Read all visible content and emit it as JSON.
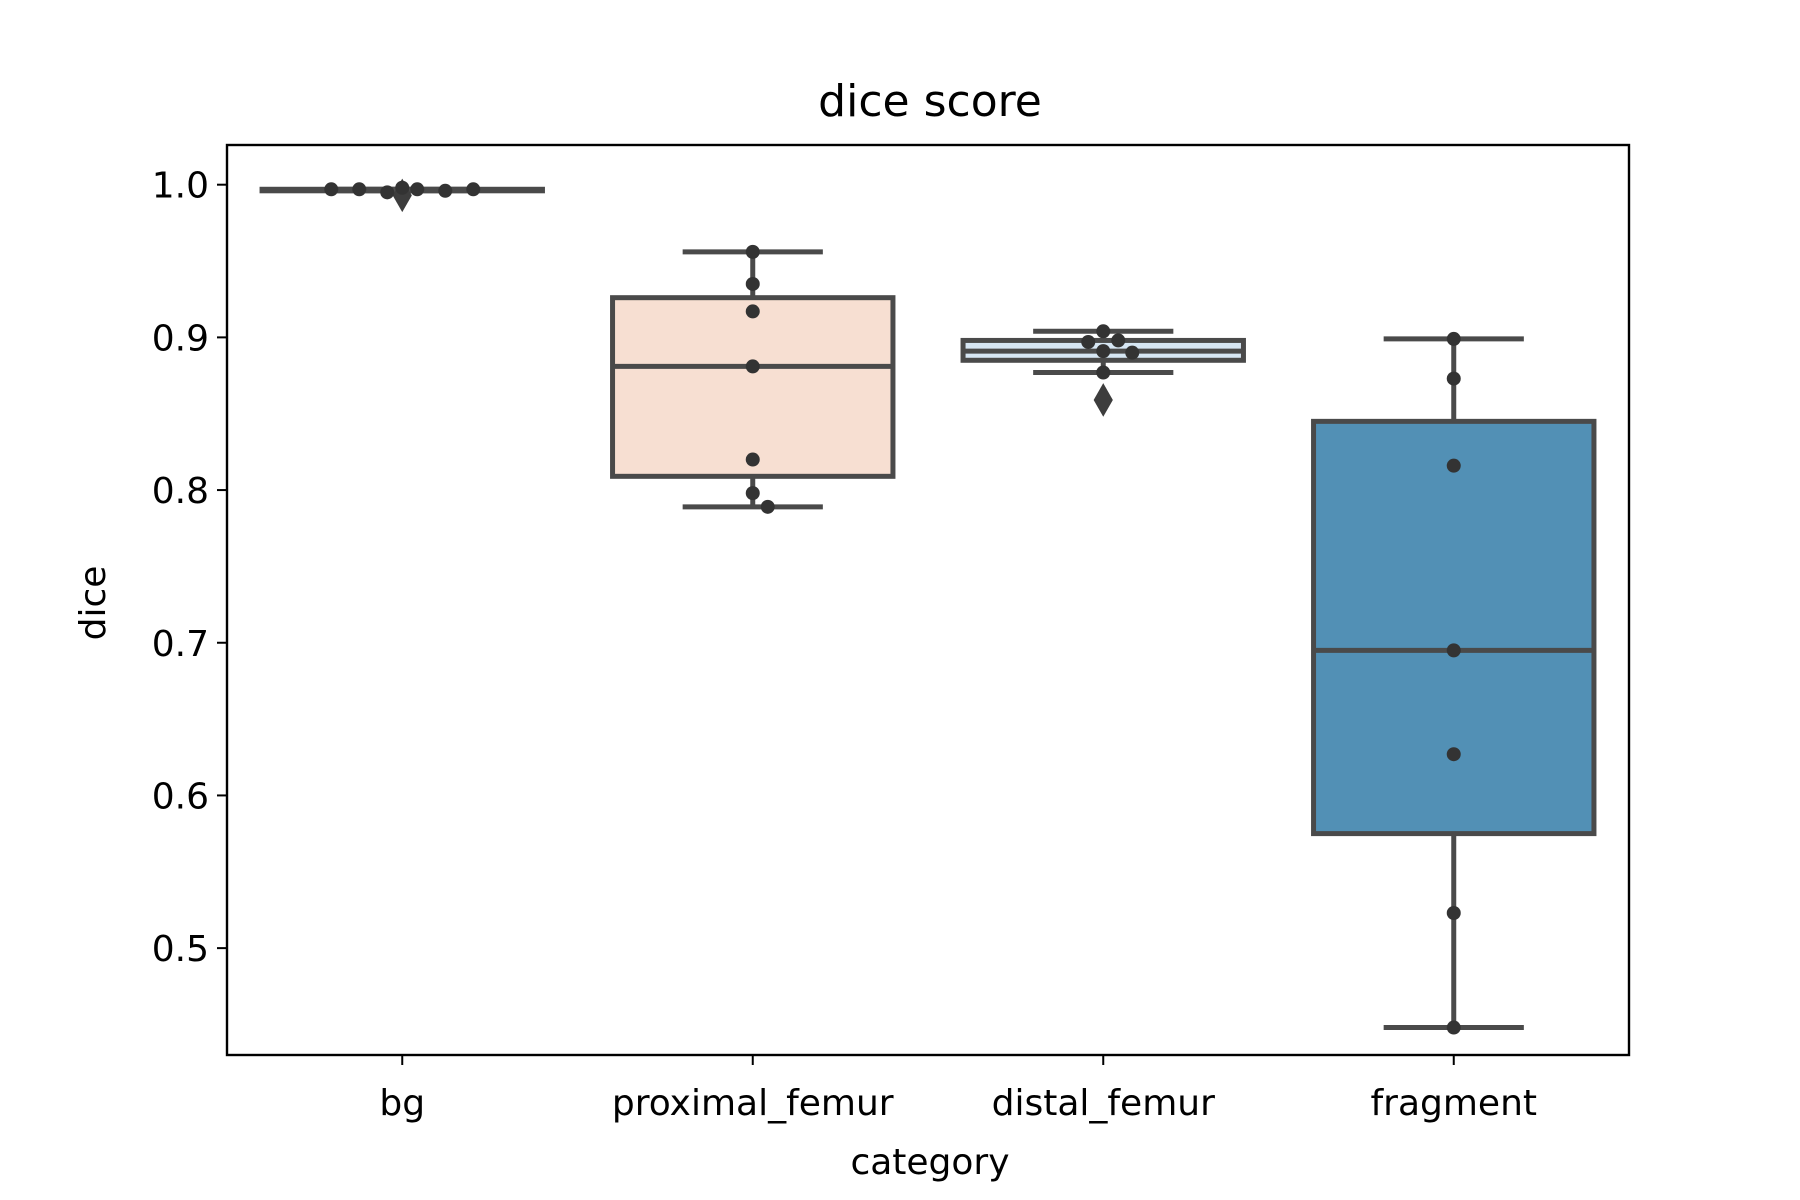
{
  "chart_data": {
    "type": "box",
    "title": "dice score",
    "xlabel": "category",
    "ylabel": "dice",
    "ylim": [
      0.43,
      1.026
    ],
    "yticks": [
      0.5,
      0.6,
      0.7,
      0.8,
      0.9,
      1.0
    ],
    "ytick_labels": [
      "0.5",
      "0.6",
      "0.7",
      "0.8",
      "0.9",
      "1.0"
    ],
    "categories": [
      "bg",
      "proximal_femur",
      "distal_femur",
      "fragment"
    ],
    "boxes": [
      {
        "category": "bg",
        "color": "#f2f2f2",
        "whisker_low": 0.996,
        "q1": 0.996,
        "median": 0.9965,
        "q3": 0.997,
        "whisker_high": 0.997,
        "outliers": [
          0.993
        ],
        "points": [
          0.998,
          0.997,
          0.995,
          0.996,
          0.997,
          0.997,
          0.997
        ]
      },
      {
        "category": "proximal_femur",
        "color": "#f7dfd2",
        "whisker_low": 0.789,
        "q1": 0.809,
        "median": 0.881,
        "q3": 0.926,
        "whisker_high": 0.956,
        "outliers": [],
        "points": [
          0.956,
          0.935,
          0.917,
          0.881,
          0.82,
          0.798,
          0.789
        ]
      },
      {
        "category": "distal_femur",
        "color": "#d6e6f3",
        "whisker_low": 0.877,
        "q1": 0.885,
        "median": 0.891,
        "q3": 0.898,
        "whisker_high": 0.904,
        "outliers": [
          0.859
        ],
        "points": [
          0.904,
          0.898,
          0.897,
          0.891,
          0.89,
          0.877
        ]
      },
      {
        "category": "fragment",
        "color": "#5290b5",
        "whisker_low": 0.448,
        "q1": 0.575,
        "median": 0.695,
        "q3": 0.845,
        "whisker_high": 0.899,
        "outliers": [],
        "points": [
          0.899,
          0.873,
          0.816,
          0.695,
          0.627,
          0.523,
          0.448
        ]
      }
    ],
    "grid": false,
    "legend": "none"
  }
}
